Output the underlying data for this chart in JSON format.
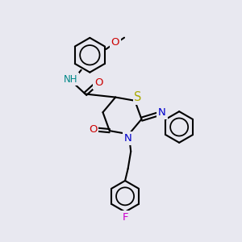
{
  "bg_color": "#e8e8f0",
  "bond_color": "#000000",
  "bond_width": 1.5,
  "atom_colors": {
    "N": "#0000cc",
    "O": "#cc0000",
    "S": "#aaaa00",
    "F": "#cc00cc",
    "NH": "#008888",
    "C": "#000000"
  },
  "font_size": 8.5,
  "figsize": [
    3.0,
    3.0
  ],
  "dpi": 100
}
